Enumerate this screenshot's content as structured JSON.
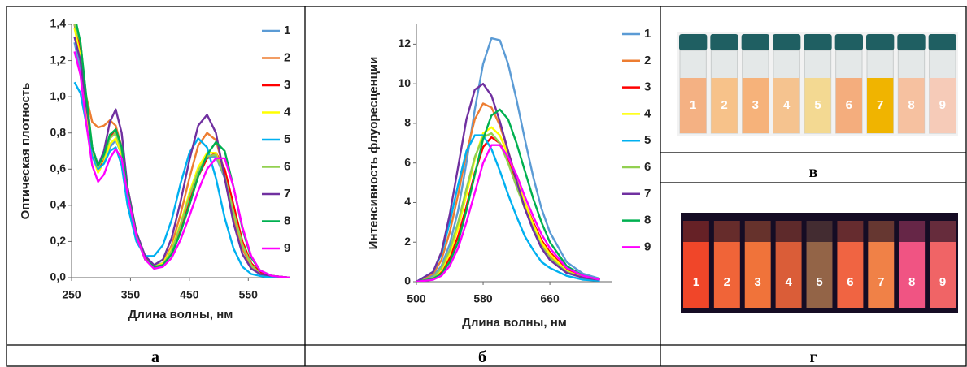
{
  "chart_data": [
    {
      "type": "line",
      "x_label": "Длина волны, нм",
      "y_label": "Оптическая плотность",
      "x": [
        255,
        265,
        275,
        285,
        295,
        305,
        315,
        325,
        335,
        345,
        360,
        375,
        390,
        405,
        420,
        435,
        450,
        465,
        480,
        495,
        510,
        525,
        540,
        555,
        570,
        590,
        620
      ],
      "xlim": [
        250,
        620
      ],
      "xticks": [
        250,
        350,
        450,
        550
      ],
      "ylim": [
        0,
        1.4
      ],
      "yticks": [
        {
          "value": 0,
          "label": "0,0"
        },
        {
          "value": 0.2,
          "label": "0,2"
        },
        {
          "value": 0.4,
          "label": "0,4"
        },
        {
          "value": 0.6,
          "label": "0,6"
        },
        {
          "value": 0.8,
          "label": "0,8"
        },
        {
          "value": 1.0,
          "label": "1,0"
        },
        {
          "value": 1.2,
          "label": "1,2"
        },
        {
          "value": 1.4,
          "label": "1,4"
        }
      ],
      "series": [
        {
          "name": "1",
          "color": "#5b9bd5",
          "values": [
            1.3,
            1.15,
            0.9,
            0.68,
            0.6,
            0.64,
            0.72,
            0.76,
            0.68,
            0.45,
            0.22,
            0.1,
            0.07,
            0.08,
            0.15,
            0.28,
            0.44,
            0.58,
            0.66,
            0.67,
            0.55,
            0.36,
            0.18,
            0.07,
            0.02,
            0.01,
            0
          ]
        },
        {
          "name": "2",
          "color": "#ed7d31",
          "values": [
            1.5,
            1.2,
            1.0,
            0.86,
            0.83,
            0.84,
            0.87,
            0.84,
            0.72,
            0.5,
            0.25,
            0.11,
            0.06,
            0.08,
            0.18,
            0.35,
            0.55,
            0.73,
            0.8,
            0.76,
            0.58,
            0.34,
            0.16,
            0.06,
            0.02,
            0.01,
            0
          ]
        },
        {
          "name": "3",
          "color": "#ff0000",
          "values": [
            1.4,
            1.25,
            0.95,
            0.7,
            0.6,
            0.66,
            0.78,
            0.82,
            0.72,
            0.48,
            0.24,
            0.1,
            0.06,
            0.07,
            0.14,
            0.27,
            0.42,
            0.56,
            0.66,
            0.69,
            0.6,
            0.4,
            0.2,
            0.08,
            0.03,
            0.01,
            0
          ]
        },
        {
          "name": "4",
          "color": "#ffff00",
          "values": [
            1.38,
            1.22,
            0.93,
            0.68,
            0.58,
            0.64,
            0.74,
            0.77,
            0.68,
            0.46,
            0.23,
            0.1,
            0.06,
            0.08,
            0.16,
            0.3,
            0.47,
            0.61,
            0.69,
            0.69,
            0.56,
            0.36,
            0.18,
            0.07,
            0.02,
            0.01,
            0
          ]
        },
        {
          "name": "5",
          "color": "#00b0f0",
          "values": [
            1.08,
            1.02,
            0.85,
            0.67,
            0.6,
            0.63,
            0.7,
            0.72,
            0.62,
            0.4,
            0.2,
            0.12,
            0.12,
            0.18,
            0.32,
            0.52,
            0.69,
            0.77,
            0.72,
            0.55,
            0.33,
            0.16,
            0.06,
            0.02,
            0.01,
            0,
            0
          ]
        },
        {
          "name": "6",
          "color": "#92d050",
          "values": [
            1.4,
            1.3,
            1.0,
            0.72,
            0.61,
            0.67,
            0.77,
            0.8,
            0.7,
            0.47,
            0.23,
            0.1,
            0.06,
            0.07,
            0.15,
            0.29,
            0.45,
            0.59,
            0.67,
            0.68,
            0.56,
            0.36,
            0.18,
            0.07,
            0.02,
            0.01,
            0
          ]
        },
        {
          "name": "7",
          "color": "#7030a0",
          "values": [
            1.33,
            1.2,
            0.95,
            0.72,
            0.62,
            0.7,
            0.86,
            0.93,
            0.8,
            0.5,
            0.25,
            0.12,
            0.07,
            0.1,
            0.22,
            0.42,
            0.65,
            0.84,
            0.9,
            0.8,
            0.55,
            0.3,
            0.13,
            0.05,
            0.02,
            0.01,
            0
          ]
        },
        {
          "name": "8",
          "color": "#00b050",
          "values": [
            1.45,
            1.3,
            1.0,
            0.72,
            0.62,
            0.68,
            0.79,
            0.82,
            0.72,
            0.48,
            0.24,
            0.1,
            0.06,
            0.07,
            0.13,
            0.25,
            0.4,
            0.56,
            0.68,
            0.75,
            0.7,
            0.5,
            0.27,
            0.11,
            0.04,
            0.01,
            0
          ]
        },
        {
          "name": "9",
          "color": "#ff00ff",
          "values": [
            1.25,
            1.12,
            0.85,
            0.62,
            0.53,
            0.57,
            0.66,
            0.71,
            0.66,
            0.46,
            0.23,
            0.1,
            0.05,
            0.06,
            0.11,
            0.21,
            0.34,
            0.48,
            0.6,
            0.66,
            0.66,
            0.5,
            0.28,
            0.12,
            0.04,
            0.01,
            0
          ]
        }
      ]
    },
    {
      "type": "line",
      "x_label": "Длина волны, нм",
      "y_label": "Интенсивность флуоресценции",
      "x": [
        500,
        520,
        530,
        540,
        550,
        560,
        570,
        580,
        590,
        600,
        610,
        620,
        630,
        640,
        650,
        660,
        680,
        700,
        720
      ],
      "xlim": [
        500,
        735
      ],
      "xticks": [
        500,
        580,
        660
      ],
      "ylim": [
        0,
        13
      ],
      "yticks": [
        0,
        2,
        4,
        6,
        8,
        10,
        12
      ],
      "series": [
        {
          "name": "1",
          "color": "#5b9bd5",
          "values": [
            0,
            0.3,
            0.8,
            1.9,
            3.6,
            6.0,
            8.7,
            11.0,
            12.3,
            12.2,
            11.0,
            9.2,
            7.2,
            5.3,
            3.7,
            2.5,
            1.0,
            0.4,
            0.15
          ]
        },
        {
          "name": "2",
          "color": "#ed7d31",
          "values": [
            0,
            0.4,
            1.1,
            2.5,
            4.4,
            6.5,
            8.2,
            9.0,
            8.8,
            7.9,
            6.6,
            5.2,
            3.9,
            2.8,
            1.9,
            1.3,
            0.5,
            0.2,
            0.1
          ]
        },
        {
          "name": "3",
          "color": "#ff0000",
          "values": [
            0,
            0.2,
            0.5,
            1.2,
            2.3,
            3.8,
            5.5,
            6.8,
            7.3,
            7.0,
            6.2,
            5.1,
            4.0,
            3.0,
            2.1,
            1.5,
            0.6,
            0.25,
            0.1
          ]
        },
        {
          "name": "4",
          "color": "#ffff00",
          "values": [
            0,
            0.2,
            0.6,
            1.4,
            2.7,
            4.4,
            6.2,
            7.5,
            7.8,
            7.4,
            6.4,
            5.2,
            4.0,
            2.9,
            2.0,
            1.4,
            0.55,
            0.2,
            0.1
          ]
        },
        {
          "name": "5",
          "color": "#00b0f0",
          "values": [
            0,
            0.5,
            1.4,
            3.0,
            4.9,
            6.6,
            7.4,
            7.4,
            6.7,
            5.6,
            4.4,
            3.3,
            2.3,
            1.6,
            1.0,
            0.7,
            0.3,
            0.1,
            0.05
          ]
        },
        {
          "name": "6",
          "color": "#92d050",
          "values": [
            0,
            0.2,
            0.7,
            1.6,
            3.0,
            4.7,
            6.3,
            7.3,
            7.5,
            7.0,
            6.0,
            4.8,
            3.7,
            2.7,
            1.8,
            1.2,
            0.5,
            0.2,
            0.1
          ]
        },
        {
          "name": "7",
          "color": "#7030a0",
          "values": [
            0,
            0.5,
            1.5,
            3.4,
            5.8,
            8.2,
            9.7,
            10.0,
            9.4,
            8.1,
            6.6,
            5.1,
            3.7,
            2.6,
            1.7,
            1.1,
            0.45,
            0.2,
            0.1
          ]
        },
        {
          "name": "8",
          "color": "#00b050",
          "values": [
            0,
            0.15,
            0.4,
            1.0,
            2.0,
            3.6,
            5.4,
            7.2,
            8.4,
            8.7,
            8.2,
            7.0,
            5.6,
            4.2,
            3.0,
            2.0,
            0.8,
            0.3,
            0.1
          ]
        },
        {
          "name": "9",
          "color": "#ff00ff",
          "values": [
            0,
            0.1,
            0.3,
            0.8,
            1.7,
            3.0,
            4.5,
            6.0,
            6.9,
            6.9,
            6.3,
            5.4,
            4.3,
            3.3,
            2.4,
            1.7,
            0.7,
            0.3,
            0.1
          ]
        }
      ]
    }
  ],
  "panels": {
    "a": "а",
    "b": "б",
    "v": "в",
    "g": "г"
  },
  "photos": [
    {
      "labels": [
        "1",
        "2",
        "3",
        "4",
        "5",
        "6",
        "7",
        "8",
        "9"
      ]
    },
    {
      "labels": [
        "1",
        "2",
        "3",
        "4",
        "5",
        "6",
        "7",
        "8",
        "9"
      ]
    }
  ]
}
